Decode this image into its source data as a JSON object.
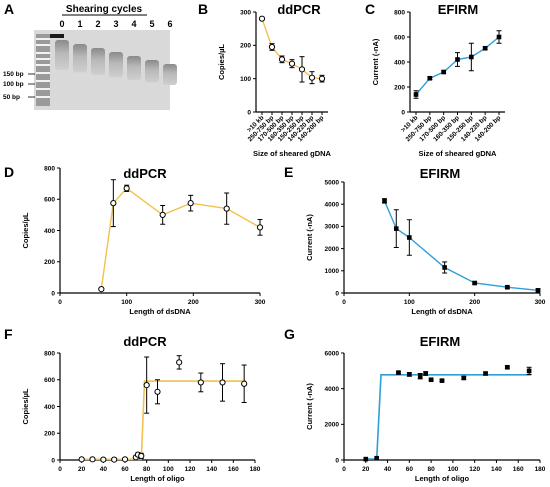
{
  "gel": {
    "label": "A",
    "title": "Shearing cycles",
    "lanes": [
      "0",
      "1",
      "2",
      "3",
      "4",
      "5",
      "6"
    ],
    "ladder_labels": [
      "150 bp",
      "100 bp",
      "50 bp"
    ]
  },
  "chart_data": [
    {
      "label": "B",
      "type": "line",
      "title": "ddPCR",
      "xlabel": "",
      "ylabel": "Copies/µL",
      "categories": [
        ">10 kb",
        "250-750 bp",
        "170-500 bp",
        "160-350 bp",
        "150-250 bp",
        "140-220 bp",
        "140-200 bp"
      ],
      "values": [
        280,
        195,
        158,
        145,
        128,
        103,
        100
      ],
      "errors": [
        0,
        10,
        10,
        12,
        38,
        18,
        10
      ],
      "ylim": [
        0,
        300
      ],
      "yticks": [
        0,
        100,
        200,
        300
      ],
      "x_caption": "Size of sheared gDNA",
      "marker": "open-circle",
      "line_color": "#f2c14e",
      "first_point_open_no_error": true
    },
    {
      "label": "C",
      "type": "line",
      "title": "EFIRM",
      "xlabel": "",
      "ylabel": "Current (-nA)",
      "categories": [
        ">10 kb",
        "250-750 bp",
        "170-500 bp",
        "160-350 bp",
        "150-250 bp",
        "140-220 bp",
        "140-200 bp"
      ],
      "values": [
        140,
        270,
        320,
        420,
        440,
        510,
        600
      ],
      "errors": [
        30,
        10,
        10,
        55,
        110,
        10,
        50
      ],
      "ylim": [
        0,
        800
      ],
      "yticks": [
        0,
        200,
        400,
        600,
        800
      ],
      "x_caption": "Size of  sheared gDNA",
      "marker": "filled-square",
      "line_color": "#2e9fd8"
    },
    {
      "label": "D",
      "type": "line",
      "title": "ddPCR",
      "xlabel": "Length of dsDNA",
      "ylabel": "Copies/µL",
      "x": [
        62,
        80,
        100,
        154,
        196,
        250,
        300
      ],
      "values": [
        25,
        575,
        670,
        500,
        575,
        540,
        420
      ],
      "errors": [
        0,
        150,
        20,
        60,
        50,
        100,
        50
      ],
      "xlim": [
        0,
        300
      ],
      "xticks": [
        0,
        100,
        200,
        300
      ],
      "ylim": [
        0,
        800
      ],
      "yticks": [
        0,
        200,
        400,
        600,
        800
      ],
      "marker": "open-circle",
      "line_color": "#f2c14e"
    },
    {
      "label": "E",
      "type": "line",
      "title": "EFIRM",
      "xlabel": "Length of dsDNA",
      "ylabel": "Current (-nA)",
      "x": [
        62,
        80,
        100,
        154,
        200,
        250,
        297
      ],
      "values": [
        4150,
        2900,
        2500,
        1150,
        450,
        260,
        120
      ],
      "errors": [
        100,
        850,
        800,
        250,
        50,
        50,
        60
      ],
      "xlim": [
        0,
        300
      ],
      "xticks": [
        0,
        100,
        200,
        300
      ],
      "ylim": [
        0,
        5000
      ],
      "yticks": [
        0,
        1000,
        2000,
        3000,
        4000,
        5000
      ],
      "marker": "filled-square",
      "line_color": "#2e9fd8"
    },
    {
      "label": "F",
      "type": "line",
      "title": "ddPCR",
      "xlabel": "Length of oligo",
      "ylabel": "Copies/µL",
      "x": [
        20,
        30,
        40,
        50,
        60,
        70,
        72,
        75,
        80,
        90,
        110,
        130,
        150,
        170
      ],
      "values": [
        5,
        5,
        3,
        3,
        5,
        20,
        40,
        30,
        560,
        510,
        730,
        580,
        580,
        570
      ],
      "errors": [
        0,
        0,
        0,
        0,
        0,
        10,
        15,
        20,
        210,
        90,
        50,
        70,
        140,
        140
      ],
      "fit_x": [
        18,
        75,
        78,
        172
      ],
      "fit_y": [
        5,
        5,
        590,
        590
      ],
      "xlim": [
        0,
        180
      ],
      "xticks": [
        0,
        20,
        40,
        60,
        80,
        100,
        120,
        140,
        160,
        180
      ],
      "ylim": [
        0,
        800
      ],
      "yticks": [
        0,
        200,
        400,
        600,
        800
      ],
      "marker": "open-circle",
      "line_color": "#f2c14e"
    },
    {
      "label": "G",
      "type": "line",
      "title": "EFIRM",
      "xlabel": "Length of oligo",
      "ylabel": "Current (-nA)",
      "x": [
        20,
        30,
        50,
        60,
        70,
        75,
        80,
        90,
        110,
        130,
        150,
        170
      ],
      "values": [
        50,
        100,
        4900,
        4800,
        4700,
        4850,
        4500,
        4450,
        4600,
        4850,
        5200,
        5000
      ],
      "errors": [
        0,
        0,
        50,
        100,
        150,
        100,
        50,
        50,
        80,
        80,
        60,
        200
      ],
      "fit_x": [
        18,
        30,
        34,
        172
      ],
      "fit_y": [
        50,
        50,
        4780,
        4780
      ],
      "xlim": [
        0,
        180
      ],
      "xticks": [
        0,
        20,
        40,
        60,
        80,
        100,
        120,
        140,
        160,
        180
      ],
      "ylim": [
        0,
        6000
      ],
      "yticks": [
        0,
        2000,
        4000,
        6000
      ],
      "marker": "filled-square",
      "line_color": "#2e9fd8"
    }
  ]
}
